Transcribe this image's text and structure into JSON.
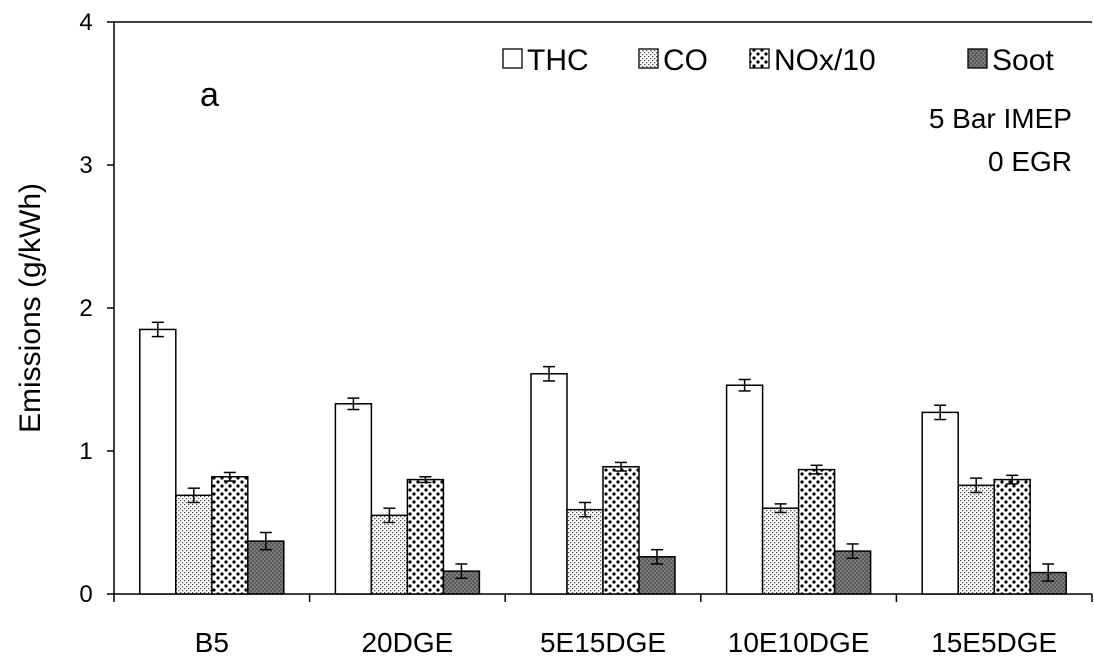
{
  "chart_data": {
    "type": "bar",
    "title": "",
    "panel_label": "a",
    "annotations": [
      "5 Bar IMEP",
      "0 EGR"
    ],
    "xlabel": "",
    "ylabel": "Emissions (g/kWh)",
    "ylim": [
      0,
      4
    ],
    "yticks": [
      0,
      1,
      2,
      3,
      4
    ],
    "grid": false,
    "legend_position": "top-right",
    "categories": [
      "B5",
      "20DGE",
      "5E15DGE",
      "10E10DGE",
      "15E5DGE"
    ],
    "series": [
      {
        "name": "THC",
        "pattern": "white",
        "values": [
          1.85,
          1.33,
          1.54,
          1.46,
          1.27
        ],
        "errors": [
          0.05,
          0.04,
          0.05,
          0.04,
          0.05
        ]
      },
      {
        "name": "CO",
        "pattern": "fine-dots",
        "values": [
          0.69,
          0.55,
          0.59,
          0.6,
          0.76
        ],
        "errors": [
          0.05,
          0.05,
          0.05,
          0.03,
          0.05
        ]
      },
      {
        "name": "NOx/10",
        "pattern": "coarse-dots",
        "values": [
          0.82,
          0.8,
          0.89,
          0.87,
          0.8
        ],
        "errors": [
          0.03,
          0.02,
          0.03,
          0.03,
          0.03
        ]
      },
      {
        "name": "Soot",
        "pattern": "dark-gray",
        "values": [
          0.37,
          0.16,
          0.26,
          0.3,
          0.15
        ],
        "errors": [
          0.06,
          0.05,
          0.05,
          0.05,
          0.06
        ]
      }
    ]
  }
}
